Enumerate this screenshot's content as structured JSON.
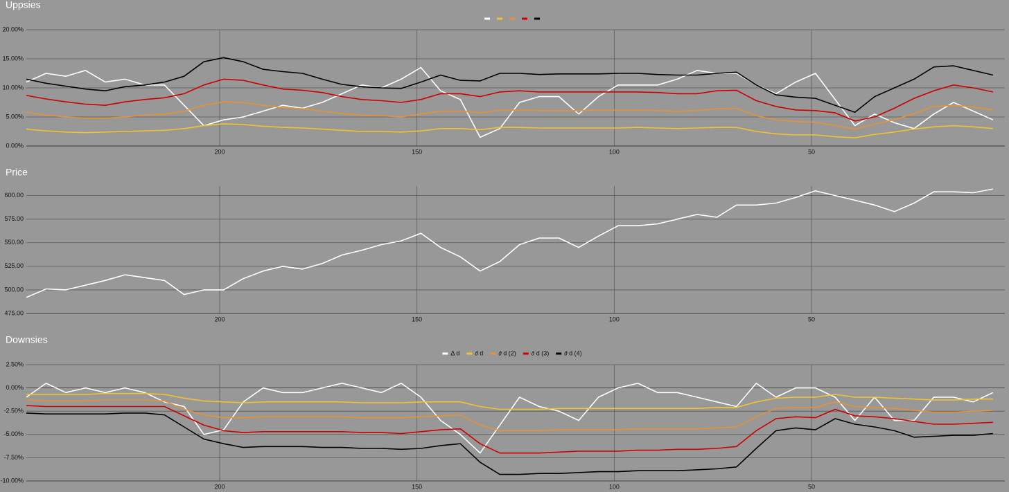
{
  "chart_data": [
    {
      "type": "line",
      "title": "Uppsies",
      "legend": "top",
      "grid": true,
      "x": [
        249,
        244,
        239,
        234,
        229,
        224,
        219,
        214,
        209,
        204,
        199,
        194,
        189,
        184,
        179,
        174,
        169,
        164,
        159,
        154,
        149,
        144,
        139,
        134,
        129,
        124,
        119,
        114,
        109,
        104,
        99,
        94,
        89,
        84,
        79,
        74,
        69,
        64,
        59,
        54,
        49,
        44,
        39,
        34,
        29,
        24,
        19,
        14,
        9,
        4
      ],
      "xlim": [
        249,
        1
      ],
      "xticks": [
        200,
        150,
        100,
        50
      ],
      "ylim": [
        0,
        20
      ],
      "yticks": [
        {
          "value": 0,
          "label": "0.00%"
        },
        {
          "value": 5,
          "label": "5.00%"
        },
        {
          "value": 10,
          "label": "10.00%"
        },
        {
          "value": 15,
          "label": "15.00%"
        },
        {
          "value": 20,
          "label": "20.00%"
        }
      ],
      "series": [
        {
          "color": "#ffffff",
          "values": [
            11,
            12.5,
            12,
            13,
            11,
            11.5,
            10.5,
            10.5,
            7,
            3.5,
            4.5,
            5,
            6,
            7,
            6.5,
            7.5,
            9,
            10.5,
            10,
            11.5,
            13.5,
            9.5,
            8,
            1.5,
            3,
            7.5,
            8.5,
            8.5,
            5.5,
            8.5,
            10.5,
            10.5,
            10.5,
            11.5,
            13,
            12.5,
            12.5,
            10.5,
            9,
            11,
            12.5,
            8,
            3.5,
            5.5,
            4,
            3,
            5.5,
            7.5,
            6,
            4.5
          ]
        },
        {
          "color": "#f1c232",
          "values": [
            2.9,
            2.6,
            2.4,
            2.3,
            2.4,
            2.5,
            2.6,
            2.7,
            3,
            3.5,
            3.8,
            3.7,
            3.4,
            3.2,
            3.1,
            2.9,
            2.7,
            2.5,
            2.5,
            2.4,
            2.6,
            3,
            3,
            2.8,
            3.2,
            3.2,
            3.1,
            3.1,
            3.1,
            3.1,
            3.1,
            3.2,
            3.1,
            3,
            3.1,
            3.2,
            3.2,
            2.5,
            2.1,
            1.9,
            1.9,
            1.6,
            1.4,
            2,
            2.4,
            2.9,
            3.3,
            3.5,
            3.3,
            3
          ]
        },
        {
          "color": "#e69138",
          "values": [
            5.8,
            5.3,
            5,
            4.8,
            4.8,
            5,
            5.3,
            5.5,
            6,
            7,
            7.6,
            7.5,
            7,
            6.6,
            6.4,
            6,
            5.6,
            5.3,
            5.2,
            5,
            5.5,
            6,
            6,
            5.7,
            6.2,
            6.2,
            6.1,
            6.1,
            6.1,
            6.2,
            6.2,
            6.2,
            6.1,
            6,
            6.1,
            6.4,
            6.5,
            5.2,
            4.5,
            4.2,
            4.1,
            3.5,
            2.9,
            3.8,
            4.5,
            5.6,
            6.8,
            7,
            6.7,
            6.2
          ]
        },
        {
          "color": "#cc0000",
          "values": [
            8.7,
            8.1,
            7.6,
            7.2,
            7,
            7.6,
            8,
            8.3,
            9,
            10.5,
            11.5,
            11.3,
            10.5,
            9.8,
            9.6,
            9.2,
            8.5,
            8,
            7.8,
            7.5,
            8,
            9,
            9,
            8.5,
            9.3,
            9.5,
            9.3,
            9.3,
            9.3,
            9.3,
            9.3,
            9.3,
            9.2,
            9,
            9,
            9.5,
            9.6,
            7.8,
            6.8,
            6.2,
            6.1,
            5.7,
            4.3,
            5,
            6.5,
            8.2,
            9.5,
            10.5,
            10,
            9.3
          ]
        },
        {
          "color": "#000000",
          "values": [
            11.5,
            10.8,
            10.3,
            9.8,
            9.5,
            10.2,
            10.5,
            11,
            12,
            14.5,
            15.2,
            14.5,
            13.2,
            12.8,
            12.5,
            11.5,
            10.6,
            10.2,
            10,
            9.9,
            11,
            12.2,
            11.3,
            11.2,
            12.5,
            12.5,
            12.3,
            12.4,
            12.4,
            12.4,
            12.5,
            12.5,
            12.3,
            12.2,
            12.2,
            12.5,
            12.7,
            10.5,
            8.8,
            8.4,
            8.2,
            7,
            5.8,
            8.5,
            10,
            11.5,
            13.6,
            13.8,
            13,
            12.2
          ]
        }
      ]
    },
    {
      "type": "line",
      "title": "Price",
      "grid": true,
      "x": [
        249,
        244,
        239,
        234,
        229,
        224,
        219,
        214,
        209,
        204,
        199,
        194,
        189,
        184,
        179,
        174,
        169,
        164,
        159,
        154,
        149,
        144,
        139,
        134,
        129,
        124,
        119,
        114,
        109,
        104,
        99,
        94,
        89,
        84,
        79,
        74,
        69,
        64,
        59,
        54,
        49,
        44,
        39,
        34,
        29,
        24,
        19,
        14,
        9,
        4
      ],
      "xlim": [
        249,
        1
      ],
      "xticks": [
        200,
        150,
        100,
        50
      ],
      "ylim": [
        475,
        610
      ],
      "yticks": [
        {
          "value": 475,
          "label": "475.00"
        },
        {
          "value": 500,
          "label": "500.00"
        },
        {
          "value": 525,
          "label": "525.00"
        },
        {
          "value": 550,
          "label": "550.00"
        },
        {
          "value": 575,
          "label": "575.00"
        },
        {
          "value": 600,
          "label": "600.00"
        }
      ],
      "series": [
        {
          "color": "#ffffff",
          "values": [
            492,
            501,
            500,
            505,
            510,
            516,
            513,
            510,
            495,
            500,
            500,
            512,
            520,
            525,
            522,
            528,
            537,
            542,
            548,
            552,
            560,
            545,
            535,
            520,
            530,
            548,
            555,
            555,
            545,
            557,
            568,
            568,
            570,
            575,
            580,
            577,
            590,
            590,
            592,
            598,
            605,
            600,
            595,
            590,
            583,
            592,
            604,
            604,
            603,
            607
          ]
        }
      ]
    },
    {
      "type": "line",
      "title": "Downsies",
      "legend": "top",
      "grid": true,
      "x": [
        249,
        244,
        239,
        234,
        229,
        224,
        219,
        214,
        209,
        204,
        199,
        194,
        189,
        184,
        179,
        174,
        169,
        164,
        159,
        154,
        149,
        144,
        139,
        134,
        129,
        124,
        119,
        114,
        109,
        104,
        99,
        94,
        89,
        84,
        79,
        74,
        69,
        64,
        59,
        54,
        49,
        44,
        39,
        34,
        29,
        24,
        19,
        14,
        9,
        4
      ],
      "xlim": [
        249,
        1
      ],
      "xticks": [
        200,
        150,
        100,
        50
      ],
      "ylim": [
        -10,
        2.5
      ],
      "yticks": [
        {
          "value": -10,
          "label": "-10.00%"
        },
        {
          "value": -7.5,
          "label": "-7.50%"
        },
        {
          "value": -5,
          "label": "-5.00%"
        },
        {
          "value": -2.5,
          "label": "-2.50%"
        },
        {
          "value": 0,
          "label": "0.00%"
        },
        {
          "value": 2.5,
          "label": "2.50%"
        }
      ],
      "series": [
        {
          "name": "Δ d",
          "color": "#ffffff",
          "values": [
            -1,
            0.5,
            -0.5,
            0,
            -0.5,
            0,
            -0.5,
            -1.5,
            -2,
            -5,
            -4.5,
            -1.5,
            0,
            -0.5,
            -0.5,
            0,
            0.5,
            0,
            -0.5,
            0.5,
            -1,
            -3.5,
            -5,
            -7,
            -4,
            -1,
            -2,
            -2.5,
            -3.5,
            -1,
            0,
            0.5,
            -0.5,
            -0.5,
            -1,
            -1.5,
            -2,
            0.5,
            -1,
            0,
            0,
            -1,
            -3.5,
            -1,
            -3.5,
            -3.5,
            -1,
            -1,
            -1.5,
            -0.5
          ]
        },
        {
          "name": "∂ d",
          "color": "#f1c232",
          "values": [
            -0.7,
            -0.7,
            -0.7,
            -0.7,
            -0.6,
            -0.6,
            -0.6,
            -0.7,
            -1.1,
            -1.4,
            -1.5,
            -1.6,
            -1.5,
            -1.5,
            -1.5,
            -1.5,
            -1.5,
            -1.6,
            -1.6,
            -1.6,
            -1.5,
            -1.5,
            -1.5,
            -2,
            -2.3,
            -2.3,
            -2.3,
            -2.2,
            -2.2,
            -2.2,
            -2.2,
            -2.2,
            -2.2,
            -2.2,
            -2.2,
            -2.1,
            -2.1,
            -1.5,
            -1.1,
            -1,
            -1,
            -0.7,
            -1,
            -1,
            -1.1,
            -1.2,
            -1.3,
            -1.3,
            -1.2,
            -1.2
          ]
        },
        {
          "name": "∂ d (2)",
          "color": "#e69138",
          "values": [
            -1.3,
            -1.4,
            -1.4,
            -1.4,
            -1.3,
            -1.3,
            -1.3,
            -1.4,
            -2.3,
            -2.9,
            -3.2,
            -3.2,
            -3.1,
            -3.1,
            -3.1,
            -3.1,
            -3.1,
            -3.2,
            -3.2,
            -3.2,
            -3.1,
            -3,
            -2.9,
            -4,
            -4.6,
            -4.6,
            -4.6,
            -4.5,
            -4.5,
            -4.5,
            -4.5,
            -4.4,
            -4.4,
            -4.4,
            -4.4,
            -4.3,
            -4.2,
            -3.1,
            -2.2,
            -2.1,
            -2.1,
            -1.5,
            -2,
            -2.1,
            -2.2,
            -2.4,
            -2.6,
            -2.6,
            -2.5,
            -2.4
          ]
        },
        {
          "name": "∂ d (3)",
          "color": "#cc0000",
          "values": [
            -1.9,
            -2,
            -2,
            -2,
            -2,
            -2,
            -2,
            -2,
            -3,
            -4,
            -4.6,
            -4.8,
            -4.7,
            -4.7,
            -4.7,
            -4.7,
            -4.7,
            -4.8,
            -4.8,
            -4.9,
            -4.7,
            -4.5,
            -4.4,
            -6,
            -7,
            -7,
            -7,
            -6.9,
            -6.8,
            -6.8,
            -6.8,
            -6.7,
            -6.7,
            -6.6,
            -6.6,
            -6.5,
            -6.3,
            -4.6,
            -3.3,
            -3.1,
            -3.2,
            -2.3,
            -3,
            -3.1,
            -3.3,
            -3.6,
            -3.9,
            -3.9,
            -3.8,
            -3.7
          ]
        },
        {
          "name": "∂ d (4)",
          "color": "#000000",
          "values": [
            -2.7,
            -2.8,
            -2.8,
            -2.8,
            -2.8,
            -2.7,
            -2.7,
            -2.9,
            -4.2,
            -5.5,
            -6,
            -6.4,
            -6.3,
            -6.3,
            -6.3,
            -6.4,
            -6.4,
            -6.5,
            -6.5,
            -6.6,
            -6.5,
            -6.2,
            -6,
            -8,
            -9.3,
            -9.3,
            -9.2,
            -9.2,
            -9.1,
            -9,
            -9,
            -8.9,
            -8.9,
            -8.9,
            -8.8,
            -8.7,
            -8.5,
            -6.5,
            -4.6,
            -4.3,
            -4.5,
            -3.3,
            -3.9,
            -4.2,
            -4.6,
            -5.3,
            -5.2,
            -5.1,
            -5.1,
            -4.9
          ]
        }
      ]
    }
  ]
}
